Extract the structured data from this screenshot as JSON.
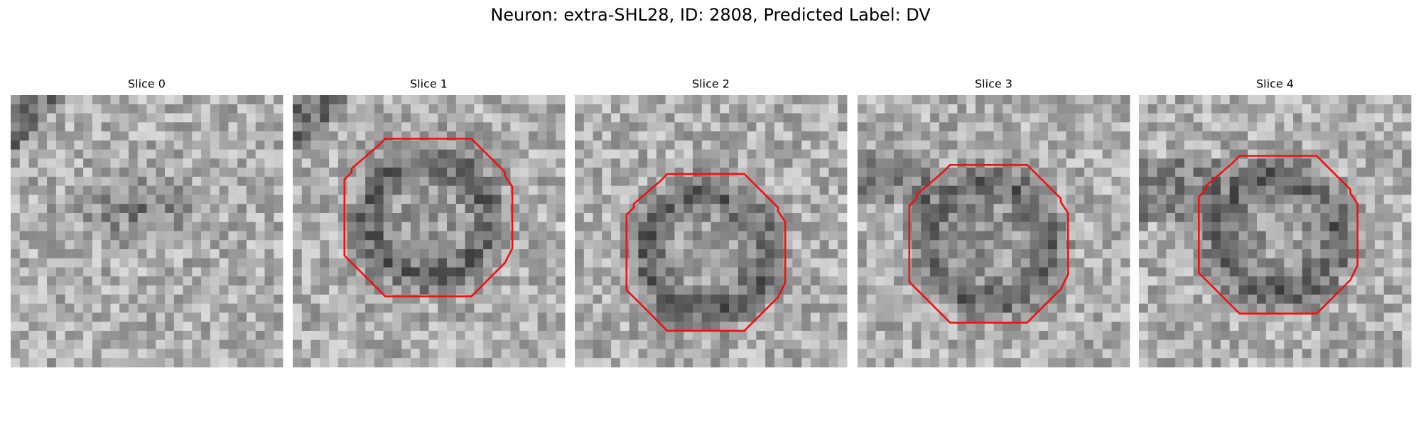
{
  "title": "Neuron: extra-SHL28, ID: 2808, Predicted Label: DV",
  "panels": [
    {
      "title": "Slice 0"
    },
    {
      "title": "Slice 1"
    },
    {
      "title": "Slice 2"
    },
    {
      "title": "Slice 3"
    },
    {
      "title": "Slice 4"
    }
  ]
}
